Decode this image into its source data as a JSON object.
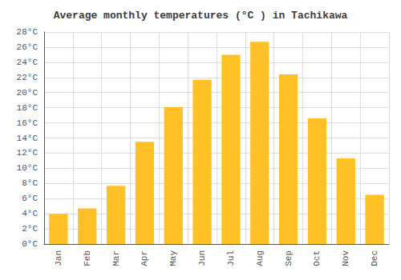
{
  "chart_data": {
    "type": "bar",
    "title": "Average monthly temperatures (°C ) in Tachikawa",
    "categories": [
      "Jan",
      "Feb",
      "Mar",
      "Apr",
      "May",
      "Jun",
      "Jul",
      "Aug",
      "Sep",
      "Oct",
      "Nov",
      "Dec"
    ],
    "values": [
      4.0,
      4.7,
      7.7,
      13.5,
      18.1,
      21.7,
      25.0,
      26.7,
      22.4,
      16.6,
      11.3,
      6.5
    ],
    "color": "#FFC125",
    "ylim": [
      0,
      28
    ],
    "yticks": [
      {
        "value": 0,
        "label": "0°C"
      },
      {
        "value": 2,
        "label": "2°C"
      },
      {
        "value": 4,
        "label": "4°C"
      },
      {
        "value": 6,
        "label": "6°C"
      },
      {
        "value": 8,
        "label": "8°C"
      },
      {
        "value": 10,
        "label": "10°C"
      },
      {
        "value": 12,
        "label": "12°C"
      },
      {
        "value": 14,
        "label": "14°C"
      },
      {
        "value": 16,
        "label": "16°C"
      },
      {
        "value": 18,
        "label": "18°C"
      },
      {
        "value": 20,
        "label": "20°C"
      },
      {
        "value": 22,
        "label": "22°C"
      },
      {
        "value": 24,
        "label": "24°C"
      },
      {
        "value": 26,
        "label": "26°C"
      },
      {
        "value": 28,
        "label": "28°C"
      }
    ],
    "grid": true
  }
}
